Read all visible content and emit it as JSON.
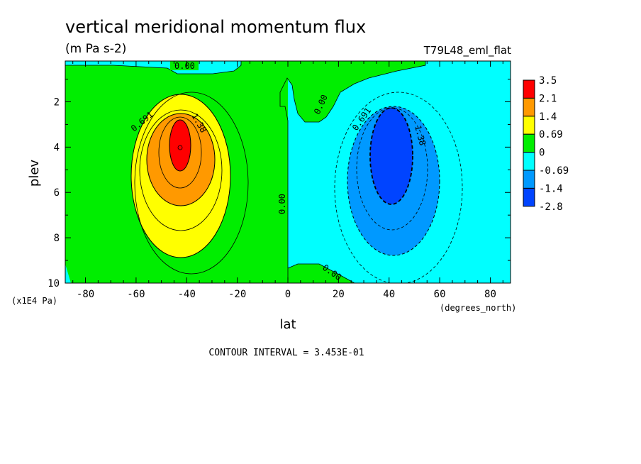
{
  "chart_data": {
    "type": "heatmap",
    "title": "vertical meridional momentum flux",
    "units": "(m Pa s-2)",
    "run_label": "T79L48_eml_flat",
    "xlabel": "lat",
    "xunits": "(degrees_north)",
    "ylabel": "plev",
    "yunits": "(x1E4 Pa)",
    "xlim": [
      -88,
      88
    ],
    "ylim": [
      10,
      0.2
    ],
    "x_ticks": [
      -80,
      -60,
      -40,
      -20,
      0,
      20,
      40,
      60,
      80
    ],
    "x_tick_labels": [
      "-80",
      "-60",
      "-40",
      "-20",
      "0",
      "20",
      "40",
      "60",
      "80"
    ],
    "y_ticks": [
      2,
      4,
      6,
      8,
      10
    ],
    "y_tick_labels": [
      "2",
      "4",
      "6",
      "8",
      "10"
    ],
    "color_levels": [
      "3.5",
      "2.1",
      "1.4",
      "0.69",
      "0",
      "-0.69",
      "-1.4",
      "-2.8"
    ],
    "level_values": [
      3.5,
      2.1,
      1.4,
      0.69,
      0,
      -0.69,
      -1.4,
      -2.8
    ],
    "level_colors": [
      "#ff0000",
      "#ff9900",
      "#ffff00",
      "#00ee00",
      "#00ffff",
      "#0099ff",
      "#0044ff"
    ],
    "contour_labels": [
      "0.00",
      "0.00",
      "0.00",
      "0.00",
      "0.691",
      "1.38",
      "0.691",
      "1.38"
    ],
    "contour_interval": "CONTOUR INTERVAL = 3.453E-01",
    "grid": false,
    "legend_placement": "right",
    "features": [
      {
        "name": "southern maximum",
        "lat": -44,
        "plev": 4.0,
        "peak": 3.5,
        "sign": "positive"
      },
      {
        "name": "northern minimum",
        "lat": 44,
        "plev": 4.0,
        "peak": -2.8,
        "sign": "negative"
      }
    ]
  }
}
